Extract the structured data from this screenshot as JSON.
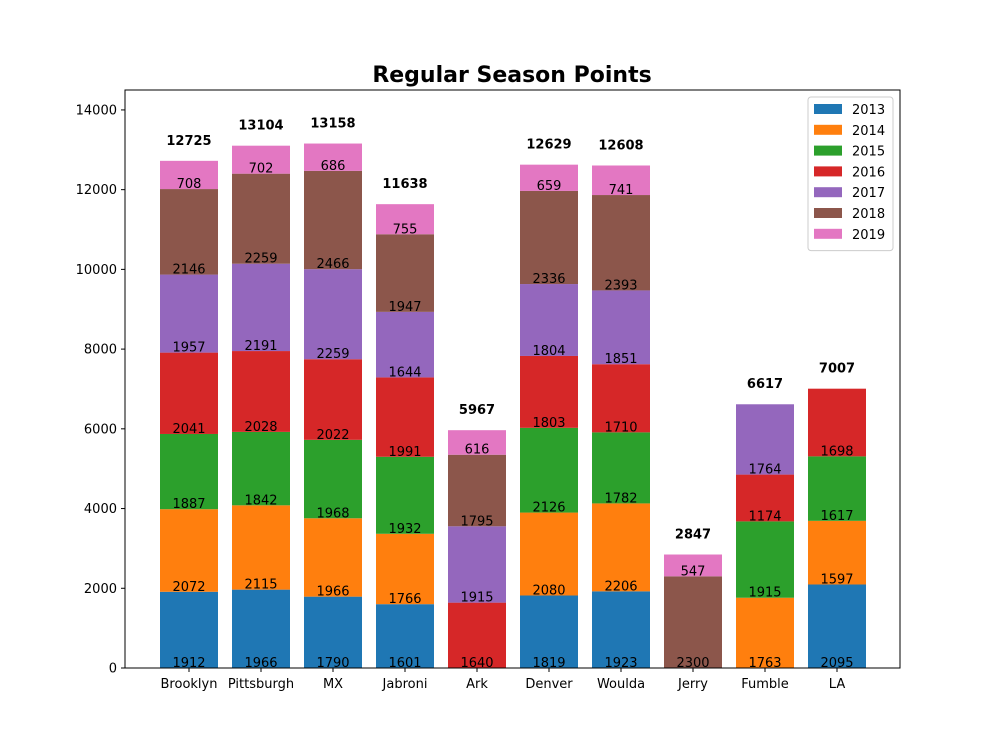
{
  "chart_data": {
    "type": "bar",
    "stacked": true,
    "title": "Regular Season Points",
    "xlabel": "",
    "ylabel": "",
    "ylim": [
      0,
      14500
    ],
    "yticks": [
      0,
      2000,
      4000,
      6000,
      8000,
      10000,
      12000,
      14000
    ],
    "grid": false,
    "legend_position": "top-right",
    "categories": [
      "Brooklyn",
      "Pittsburgh",
      "MX",
      "Jabroni",
      "Ark",
      "Denver",
      "Woulda",
      "Jerry",
      "Fumble",
      "LA"
    ],
    "totals": [
      12725,
      13104,
      13158,
      11638,
      5967,
      12629,
      12608,
      2847,
      6617,
      7007
    ],
    "series": [
      {
        "name": "2013",
        "color": "#1f77b4",
        "values": [
          1912,
          1966,
          1790,
          1601,
          0,
          1819,
          1923,
          0,
          0,
          2095
        ]
      },
      {
        "name": "2014",
        "color": "#ff7f0e",
        "values": [
          2072,
          2115,
          1966,
          1766,
          0,
          2080,
          2206,
          0,
          1763,
          1597
        ]
      },
      {
        "name": "2015",
        "color": "#2ca02c",
        "values": [
          1887,
          1842,
          1968,
          1932,
          0,
          2126,
          1782,
          0,
          1915,
          1617
        ]
      },
      {
        "name": "2016",
        "color": "#d62728",
        "values": [
          2041,
          2028,
          2022,
          1991,
          1640,
          1803,
          1710,
          0,
          1174,
          1698
        ]
      },
      {
        "name": "2017",
        "color": "#9467bd",
        "values": [
          1957,
          2191,
          2259,
          1644,
          1915,
          1804,
          1851,
          0,
          1764,
          0
        ]
      },
      {
        "name": "2018",
        "color": "#8c564b",
        "values": [
          2146,
          2259,
          2466,
          1947,
          1795,
          2336,
          2393,
          2300,
          0,
          0
        ]
      },
      {
        "name": "2019",
        "color": "#e377c2",
        "values": [
          708,
          702,
          686,
          755,
          616,
          659,
          741,
          547,
          0,
          0
        ]
      }
    ]
  }
}
